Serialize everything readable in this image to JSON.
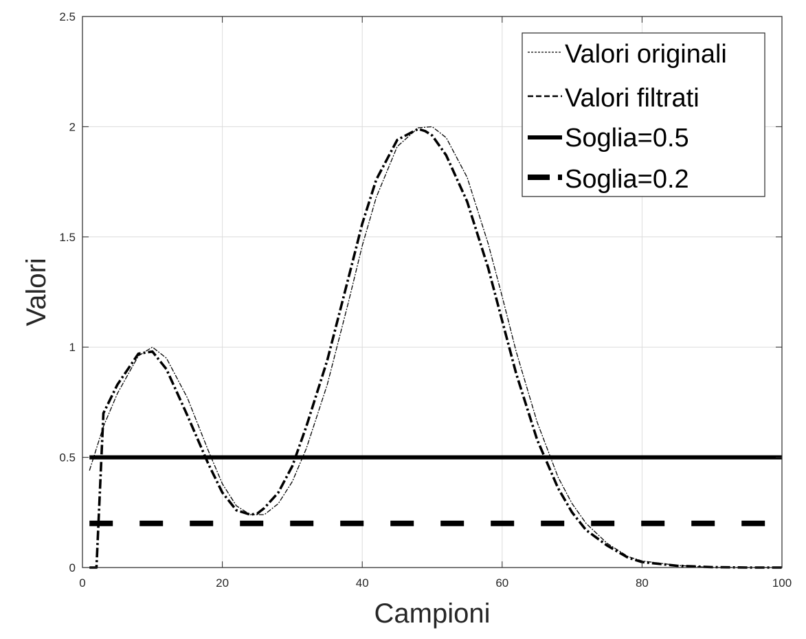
{
  "chart_data": {
    "type": "line",
    "title": "",
    "xlabel": "Campioni",
    "ylabel": "Valori",
    "xlim": [
      0,
      100
    ],
    "ylim": [
      0,
      2.5
    ],
    "xticks": [
      "0",
      "20",
      "40",
      "60",
      "80",
      "100"
    ],
    "yticks": [
      "0",
      "0.5",
      "1",
      "1.5",
      "2",
      "2.5"
    ],
    "grid": true,
    "legend_position": "top-right",
    "series": [
      {
        "name": "Valori originali",
        "style": "thin-dashdot",
        "color": "#000000",
        "x": [
          1,
          3,
          5,
          8,
          10,
          12,
          15,
          18,
          20,
          22,
          24,
          26,
          28,
          30,
          32,
          35,
          38,
          40,
          42,
          45,
          48,
          50,
          52,
          55,
          58,
          60,
          62,
          65,
          68,
          70,
          72,
          75,
          78,
          80,
          85,
          90,
          95,
          100
        ],
        "y": [
          0.44,
          0.64,
          0.79,
          0.96,
          1.0,
          0.95,
          0.77,
          0.53,
          0.38,
          0.28,
          0.24,
          0.24,
          0.29,
          0.39,
          0.54,
          0.83,
          1.2,
          1.46,
          1.68,
          1.91,
          1.995,
          2.0,
          1.95,
          1.77,
          1.47,
          1.23,
          0.98,
          0.66,
          0.41,
          0.29,
          0.2,
          0.11,
          0.05,
          0.03,
          0.01,
          0.0,
          0.0,
          0.0
        ]
      },
      {
        "name": "Valori filtrati",
        "style": "thick-dashdot",
        "color": "#000000",
        "x": [
          1,
          2,
          3,
          5,
          8,
          10,
          12,
          15,
          18,
          20,
          22,
          24,
          25,
          26,
          28,
          30,
          32,
          35,
          38,
          40,
          42,
          45,
          48,
          49,
          50,
          52,
          55,
          58,
          60,
          62,
          65,
          68,
          70,
          72,
          75,
          78,
          80,
          85,
          90,
          95,
          100
        ],
        "y": [
          0.0,
          0.0,
          0.7,
          0.83,
          0.97,
          0.98,
          0.9,
          0.69,
          0.47,
          0.34,
          0.26,
          0.24,
          0.245,
          0.27,
          0.34,
          0.46,
          0.64,
          0.94,
          1.31,
          1.56,
          1.76,
          1.94,
          1.99,
          1.98,
          1.96,
          1.87,
          1.66,
          1.36,
          1.12,
          0.88,
          0.58,
          0.36,
          0.25,
          0.17,
          0.1,
          0.045,
          0.025,
          0.008,
          0.002,
          0.0,
          0.0
        ]
      },
      {
        "name": "Soglia=0.5",
        "style": "thick-solid",
        "color": "#000000",
        "x": [
          1,
          100
        ],
        "y": [
          0.5,
          0.5
        ]
      },
      {
        "name": "Soglia=0.2",
        "style": "thick-dashed",
        "color": "#000000",
        "x": [
          1,
          100
        ],
        "y": [
          0.2,
          0.2
        ]
      }
    ]
  }
}
